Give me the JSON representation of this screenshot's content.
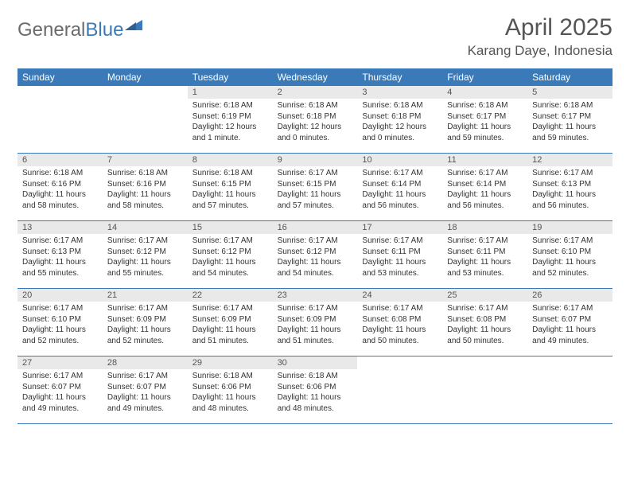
{
  "logo": {
    "word1": "General",
    "word2": "Blue"
  },
  "title": "April 2025",
  "location": "Karang Daye, Indonesia",
  "colors": {
    "header_bg": "#3a7ab8",
    "header_text": "#ffffff",
    "daynum_bg": "#e9e9e9",
    "cell_text": "#333333",
    "rule": "#3a7ab8",
    "title_text": "#555555",
    "logo_gray": "#6b6b6b",
    "logo_blue": "#3a7ab8"
  },
  "weekdays": [
    "Sunday",
    "Monday",
    "Tuesday",
    "Wednesday",
    "Thursday",
    "Friday",
    "Saturday"
  ],
  "weeks": [
    [
      null,
      null,
      {
        "n": "1",
        "sr": "Sunrise: 6:18 AM",
        "ss": "Sunset: 6:19 PM",
        "dl": "Daylight: 12 hours and 1 minute."
      },
      {
        "n": "2",
        "sr": "Sunrise: 6:18 AM",
        "ss": "Sunset: 6:18 PM",
        "dl": "Daylight: 12 hours and 0 minutes."
      },
      {
        "n": "3",
        "sr": "Sunrise: 6:18 AM",
        "ss": "Sunset: 6:18 PM",
        "dl": "Daylight: 12 hours and 0 minutes."
      },
      {
        "n": "4",
        "sr": "Sunrise: 6:18 AM",
        "ss": "Sunset: 6:17 PM",
        "dl": "Daylight: 11 hours and 59 minutes."
      },
      {
        "n": "5",
        "sr": "Sunrise: 6:18 AM",
        "ss": "Sunset: 6:17 PM",
        "dl": "Daylight: 11 hours and 59 minutes."
      }
    ],
    [
      {
        "n": "6",
        "sr": "Sunrise: 6:18 AM",
        "ss": "Sunset: 6:16 PM",
        "dl": "Daylight: 11 hours and 58 minutes."
      },
      {
        "n": "7",
        "sr": "Sunrise: 6:18 AM",
        "ss": "Sunset: 6:16 PM",
        "dl": "Daylight: 11 hours and 58 minutes."
      },
      {
        "n": "8",
        "sr": "Sunrise: 6:18 AM",
        "ss": "Sunset: 6:15 PM",
        "dl": "Daylight: 11 hours and 57 minutes."
      },
      {
        "n": "9",
        "sr": "Sunrise: 6:17 AM",
        "ss": "Sunset: 6:15 PM",
        "dl": "Daylight: 11 hours and 57 minutes."
      },
      {
        "n": "10",
        "sr": "Sunrise: 6:17 AM",
        "ss": "Sunset: 6:14 PM",
        "dl": "Daylight: 11 hours and 56 minutes."
      },
      {
        "n": "11",
        "sr": "Sunrise: 6:17 AM",
        "ss": "Sunset: 6:14 PM",
        "dl": "Daylight: 11 hours and 56 minutes."
      },
      {
        "n": "12",
        "sr": "Sunrise: 6:17 AM",
        "ss": "Sunset: 6:13 PM",
        "dl": "Daylight: 11 hours and 56 minutes."
      }
    ],
    [
      {
        "n": "13",
        "sr": "Sunrise: 6:17 AM",
        "ss": "Sunset: 6:13 PM",
        "dl": "Daylight: 11 hours and 55 minutes."
      },
      {
        "n": "14",
        "sr": "Sunrise: 6:17 AM",
        "ss": "Sunset: 6:12 PM",
        "dl": "Daylight: 11 hours and 55 minutes."
      },
      {
        "n": "15",
        "sr": "Sunrise: 6:17 AM",
        "ss": "Sunset: 6:12 PM",
        "dl": "Daylight: 11 hours and 54 minutes."
      },
      {
        "n": "16",
        "sr": "Sunrise: 6:17 AM",
        "ss": "Sunset: 6:12 PM",
        "dl": "Daylight: 11 hours and 54 minutes."
      },
      {
        "n": "17",
        "sr": "Sunrise: 6:17 AM",
        "ss": "Sunset: 6:11 PM",
        "dl": "Daylight: 11 hours and 53 minutes."
      },
      {
        "n": "18",
        "sr": "Sunrise: 6:17 AM",
        "ss": "Sunset: 6:11 PM",
        "dl": "Daylight: 11 hours and 53 minutes."
      },
      {
        "n": "19",
        "sr": "Sunrise: 6:17 AM",
        "ss": "Sunset: 6:10 PM",
        "dl": "Daylight: 11 hours and 52 minutes."
      }
    ],
    [
      {
        "n": "20",
        "sr": "Sunrise: 6:17 AM",
        "ss": "Sunset: 6:10 PM",
        "dl": "Daylight: 11 hours and 52 minutes."
      },
      {
        "n": "21",
        "sr": "Sunrise: 6:17 AM",
        "ss": "Sunset: 6:09 PM",
        "dl": "Daylight: 11 hours and 52 minutes."
      },
      {
        "n": "22",
        "sr": "Sunrise: 6:17 AM",
        "ss": "Sunset: 6:09 PM",
        "dl": "Daylight: 11 hours and 51 minutes."
      },
      {
        "n": "23",
        "sr": "Sunrise: 6:17 AM",
        "ss": "Sunset: 6:09 PM",
        "dl": "Daylight: 11 hours and 51 minutes."
      },
      {
        "n": "24",
        "sr": "Sunrise: 6:17 AM",
        "ss": "Sunset: 6:08 PM",
        "dl": "Daylight: 11 hours and 50 minutes."
      },
      {
        "n": "25",
        "sr": "Sunrise: 6:17 AM",
        "ss": "Sunset: 6:08 PM",
        "dl": "Daylight: 11 hours and 50 minutes."
      },
      {
        "n": "26",
        "sr": "Sunrise: 6:17 AM",
        "ss": "Sunset: 6:07 PM",
        "dl": "Daylight: 11 hours and 49 minutes."
      }
    ],
    [
      {
        "n": "27",
        "sr": "Sunrise: 6:17 AM",
        "ss": "Sunset: 6:07 PM",
        "dl": "Daylight: 11 hours and 49 minutes."
      },
      {
        "n": "28",
        "sr": "Sunrise: 6:17 AM",
        "ss": "Sunset: 6:07 PM",
        "dl": "Daylight: 11 hours and 49 minutes."
      },
      {
        "n": "29",
        "sr": "Sunrise: 6:18 AM",
        "ss": "Sunset: 6:06 PM",
        "dl": "Daylight: 11 hours and 48 minutes."
      },
      {
        "n": "30",
        "sr": "Sunrise: 6:18 AM",
        "ss": "Sunset: 6:06 PM",
        "dl": "Daylight: 11 hours and 48 minutes."
      },
      null,
      null,
      null
    ]
  ]
}
